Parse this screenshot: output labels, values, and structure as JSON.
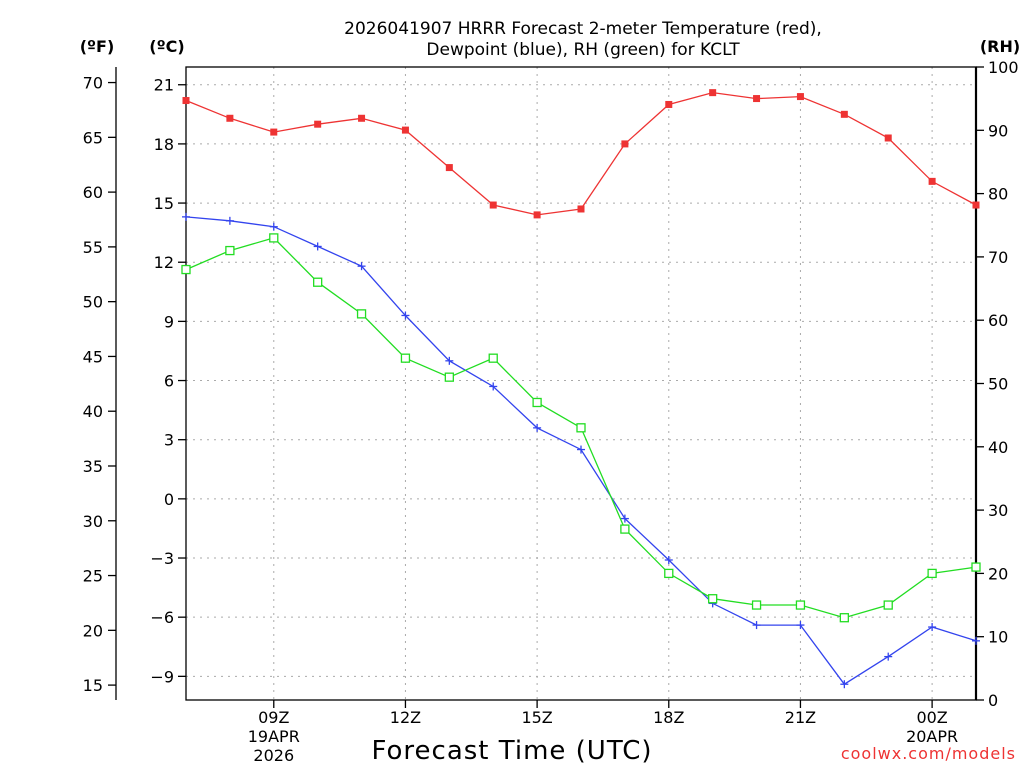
{
  "chart_data": {
    "type": "line",
    "title_line1": "2026041907 HRRR Forecast 2-meter Temperature (red),",
    "title_line2": "Dewpoint (blue), RH (green) for KCLT",
    "xlabel": "Forecast Time (UTC)",
    "credit": "coolwx.com/models",
    "left_axis_f": {
      "label": "(ºF)",
      "ticks": [
        70,
        65,
        60,
        55,
        50,
        45,
        40,
        35,
        30,
        25,
        20,
        15
      ]
    },
    "left_axis_c": {
      "label": "(ºC)",
      "ticks": [
        21,
        18,
        15,
        12,
        9,
        6,
        3,
        0,
        -3,
        -6,
        -9
      ],
      "tick_labels": [
        "21",
        "18",
        "15",
        "12",
        "9",
        "6",
        "3",
        "0",
        "−3",
        "−6",
        "−9"
      ],
      "ylim": [
        -10.2,
        21.9
      ]
    },
    "right_axis": {
      "label": "(RH)",
      "ticks": [
        100,
        90,
        80,
        70,
        60,
        50,
        40,
        30,
        20,
        10,
        0
      ],
      "ylim": [
        0,
        100
      ]
    },
    "x_axis": {
      "unit": "hours_utc_from_19APR_00Z",
      "xlim": [
        7,
        25
      ],
      "ticks": [
        {
          "x": 9,
          "label": "09Z",
          "date1": "19APR",
          "date2": "2026"
        },
        {
          "x": 12,
          "label": "12Z",
          "date1": "",
          "date2": ""
        },
        {
          "x": 15,
          "label": "15Z",
          "date1": "",
          "date2": ""
        },
        {
          "x": 18,
          "label": "18Z",
          "date1": "",
          "date2": ""
        },
        {
          "x": 21,
          "label": "21Z",
          "date1": "",
          "date2": ""
        },
        {
          "x": 24,
          "label": "00Z",
          "date1": "20APR",
          "date2": ""
        }
      ]
    },
    "x": [
      7,
      8,
      9,
      10,
      11,
      12,
      13,
      14,
      15,
      16,
      17,
      18,
      19,
      20,
      21,
      22,
      23,
      24,
      25
    ],
    "series": [
      {
        "name": "Temperature",
        "axis": "celsius",
        "color": "#ee3333",
        "marker": "filled-square",
        "values": [
          20.2,
          19.3,
          18.6,
          19.0,
          19.3,
          18.7,
          16.8,
          14.9,
          14.4,
          14.7,
          18.0,
          20.0,
          20.6,
          20.3,
          20.4,
          19.5,
          18.3,
          16.1,
          14.9
        ]
      },
      {
        "name": "Dewpoint",
        "axis": "celsius",
        "color": "#3344ee",
        "marker": "plus",
        "values": [
          14.3,
          14.1,
          13.8,
          12.8,
          11.8,
          9.3,
          7.0,
          5.7,
          3.6,
          2.5,
          -1.0,
          -3.1,
          -5.3,
          -6.4,
          -6.4,
          -9.4,
          -8.0,
          -6.5,
          -7.2
        ]
      },
      {
        "name": "RH",
        "axis": "rh",
        "color": "#22dd22",
        "marker": "open-square",
        "values": [
          68,
          71,
          73,
          66,
          61,
          54,
          51,
          54,
          47,
          43,
          27,
          20,
          16,
          15,
          15,
          13,
          15,
          20,
          21
        ]
      }
    ]
  }
}
